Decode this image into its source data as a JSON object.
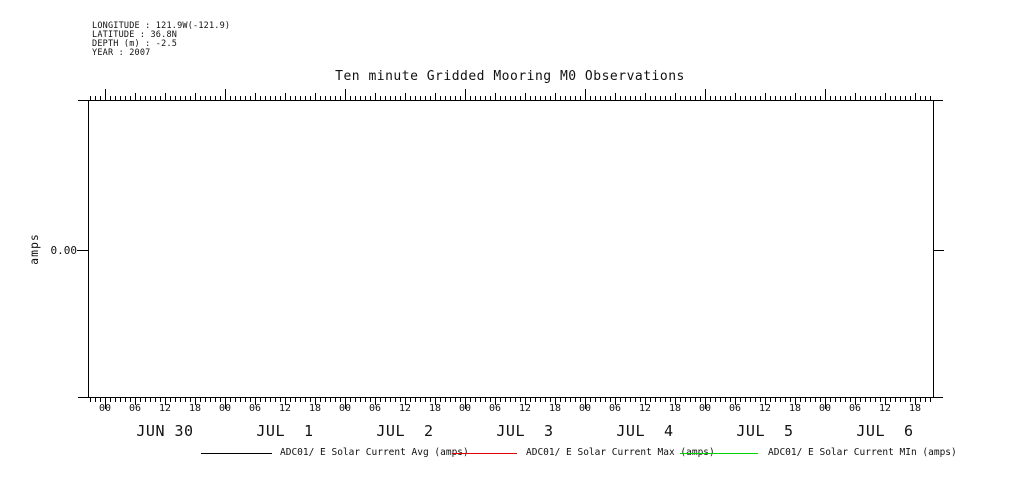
{
  "meta": {
    "lines": [
      "LONGITUDE : 121.9W(-121.9)",
      "LATITUDE : 36.8N",
      "DEPTH (m) : -2.5",
      "YEAR : 2007"
    ]
  },
  "title": "Ten minute Gridded Mooring M0 Observations",
  "y_axis": {
    "label": "amps",
    "tick_label": "0.00"
  },
  "x_axis": {
    "hour_labels": [
      "00",
      "06",
      "12",
      "18"
    ],
    "day_labels": [
      "JUN 30",
      "JUL  1",
      "JUL  2",
      "JUL  3",
      "JUL  4",
      "JUL  5",
      "JUL  6"
    ]
  },
  "legend": {
    "items": [
      {
        "label": "ADC01/ E Solar Current Avg (amps)",
        "color": "#000000"
      },
      {
        "label": "ADC01/ E Solar Current Max (amps)",
        "color": "#e00000"
      },
      {
        "label": "ADC01/ E Solar Current MIn (amps)",
        "color": "#00d400"
      }
    ]
  },
  "chart_data": {
    "type": "line",
    "title": "Ten minute Gridded Mooring M0 Observations",
    "xlabel": "",
    "ylabel": "amps",
    "x_range_days": [
      "JUN 30",
      "JUL 1",
      "JUL 2",
      "JUL 3",
      "JUL 4",
      "JUL 5",
      "JUL 6"
    ],
    "x_minor_tick_interval_hours": 1,
    "x_medium_tick_interval_hours": 6,
    "x_major_tick_interval_hours": 24,
    "x_hour_tick_labels": [
      "00",
      "06",
      "12",
      "18"
    ],
    "y_ticks": [
      0.0
    ],
    "y_tick_labels": [
      "0.00"
    ],
    "grid": false,
    "legend_position": "bottom",
    "series": [
      {
        "name": "ADC01/ E Solar Current Avg (amps)",
        "color": "#000000",
        "values": []
      },
      {
        "name": "ADC01/ E Solar Current Max (amps)",
        "color": "#e00000",
        "values": []
      },
      {
        "name": "ADC01/ E Solar Current MIn (amps)",
        "color": "#00d400",
        "values": []
      }
    ]
  }
}
